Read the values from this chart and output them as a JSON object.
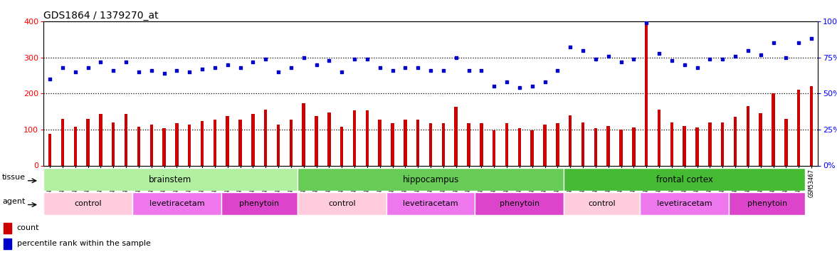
{
  "title": "GDS1864 / 1379270_at",
  "samples": [
    "GSM53440",
    "GSM53441",
    "GSM53442",
    "GSM53443",
    "GSM53444",
    "GSM53445",
    "GSM53446",
    "GSM53426",
    "GSM53427",
    "GSM53428",
    "GSM53429",
    "GSM53430",
    "GSM53431",
    "GSM53432",
    "GSM53412",
    "GSM53413",
    "GSM53414",
    "GSM53415",
    "GSM53416",
    "GSM53417",
    "GSM53447",
    "GSM53448",
    "GSM53449",
    "GSM53450",
    "GSM53451",
    "GSM53452",
    "GSM53453",
    "GSM53433",
    "GSM53434",
    "GSM53435",
    "GSM53436",
    "GSM53437",
    "GSM53438",
    "GSM53439",
    "GSM53419",
    "GSM53420",
    "GSM53421",
    "GSM53422",
    "GSM53423",
    "GSM53424",
    "GSM53425",
    "GSM53468",
    "GSM53469",
    "GSM53470",
    "GSM53471",
    "GSM53472",
    "GSM53473",
    "GSM53454",
    "GSM53455",
    "GSM53456",
    "GSM53457",
    "GSM53458",
    "GSM53459",
    "GSM53460",
    "GSM53461",
    "GSM53462",
    "GSM53463",
    "GSM53464",
    "GSM53465",
    "GSM53466",
    "GSM53467"
  ],
  "counts": [
    88,
    130,
    108,
    130,
    143,
    120,
    143,
    108,
    113,
    103,
    118,
    113,
    123,
    128,
    138,
    128,
    143,
    155,
    113,
    128,
    173,
    138,
    148,
    108,
    153,
    153,
    128,
    118,
    128,
    128,
    118,
    118,
    163,
    118,
    118,
    98,
    118,
    103,
    98,
    113,
    118,
    140,
    120,
    103,
    110,
    100,
    105,
    395,
    155,
    120,
    110,
    105,
    120,
    120,
    135,
    165,
    145,
    200,
    130,
    210,
    220
  ],
  "percentiles": [
    60,
    68,
    65,
    68,
    72,
    66,
    72,
    65,
    66,
    64,
    66,
    65,
    67,
    68,
    70,
    68,
    72,
    74,
    65,
    68,
    75,
    70,
    73,
    65,
    74,
    74,
    68,
    66,
    68,
    68,
    66,
    66,
    75,
    66,
    66,
    55,
    58,
    54,
    55,
    58,
    66,
    82,
    80,
    74,
    76,
    72,
    74,
    99,
    78,
    73,
    70,
    68,
    74,
    74,
    76,
    80,
    77,
    85,
    75,
    85,
    88
  ],
  "tissue_groups": [
    {
      "label": "brainstem",
      "start": 0,
      "end": 20,
      "color": "#b0f0a0"
    },
    {
      "label": "hippocampus",
      "start": 20,
      "end": 41,
      "color": "#66CC55"
    },
    {
      "label": "frontal cortex",
      "start": 41,
      "end": 60,
      "color": "#44BB33"
    }
  ],
  "agent_groups": [
    {
      "label": "control",
      "start": 0,
      "end": 7,
      "color": "#FFCCDD"
    },
    {
      "label": "levetiracetam",
      "start": 7,
      "end": 14,
      "color": "#EE77EE"
    },
    {
      "label": "phenytoin",
      "start": 14,
      "end": 20,
      "color": "#DD44CC"
    },
    {
      "label": "control",
      "start": 20,
      "end": 27,
      "color": "#FFCCDD"
    },
    {
      "label": "levetiracetam",
      "start": 27,
      "end": 34,
      "color": "#EE77EE"
    },
    {
      "label": "phenytoin",
      "start": 34,
      "end": 41,
      "color": "#DD44CC"
    },
    {
      "label": "control",
      "start": 41,
      "end": 47,
      "color": "#FFCCDD"
    },
    {
      "label": "levetiracetam",
      "start": 47,
      "end": 54,
      "color": "#EE77EE"
    },
    {
      "label": "phenytoin",
      "start": 54,
      "end": 60,
      "color": "#DD44CC"
    }
  ],
  "bar_color": "#CC0000",
  "dot_color": "#0000CC",
  "left_ylim": [
    0,
    400
  ],
  "right_ylim": [
    0,
    100
  ],
  "left_yticks": [
    0,
    100,
    200,
    300,
    400
  ],
  "right_yticks": [
    0,
    25,
    50,
    75,
    100
  ],
  "right_yticklabels": [
    "0%",
    "25%",
    "50%",
    "75%",
    "100%"
  ],
  "hline_values": [
    100,
    200,
    300
  ],
  "background_color": "#ffffff",
  "title_fontsize": 10,
  "tick_fontsize": 6.0,
  "legend_fontsize": 8
}
